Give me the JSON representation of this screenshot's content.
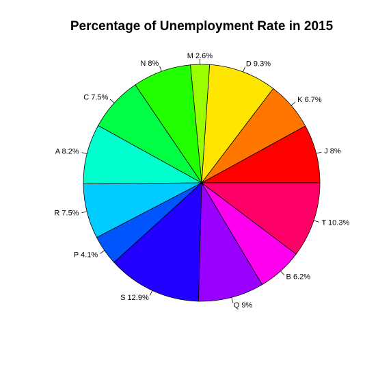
{
  "chart_data": {
    "type": "pie",
    "title": "Percentage of Unemployment Rate in 2015",
    "slices": [
      {
        "label": "J 8%",
        "value": 8.0,
        "color": "#FF0000"
      },
      {
        "label": "K 6.7%",
        "value": 6.7,
        "color": "#FF7700"
      },
      {
        "label": "D 9.3%",
        "value": 9.3,
        "color": "#FFE600"
      },
      {
        "label": "M 2.6%",
        "value": 2.6,
        "color": "#99FF00"
      },
      {
        "label": "N 8%",
        "value": 8.0,
        "color": "#22FF00"
      },
      {
        "label": "C 7.5%",
        "value": 7.5,
        "color": "#00FF44"
      },
      {
        "label": "A 8.2%",
        "value": 8.2,
        "color": "#00FFCC"
      },
      {
        "label": "R 7.5%",
        "value": 7.5,
        "color": "#00CCFF"
      },
      {
        "label": "P 4.1%",
        "value": 4.1,
        "color": "#0055FF"
      },
      {
        "label": "S 12.9%",
        "value": 12.9,
        "color": "#2200FF"
      },
      {
        "label": "Q 9%",
        "value": 9.0,
        "color": "#9900FF"
      },
      {
        "label": "B 6.2%",
        "value": 6.2,
        "color": "#FF00EE"
      },
      {
        "label": "T 10.3%",
        "value": 10.3,
        "color": "#FF0066"
      }
    ],
    "direction": "counterclockwise",
    "start_angle": "3 o'clock"
  }
}
